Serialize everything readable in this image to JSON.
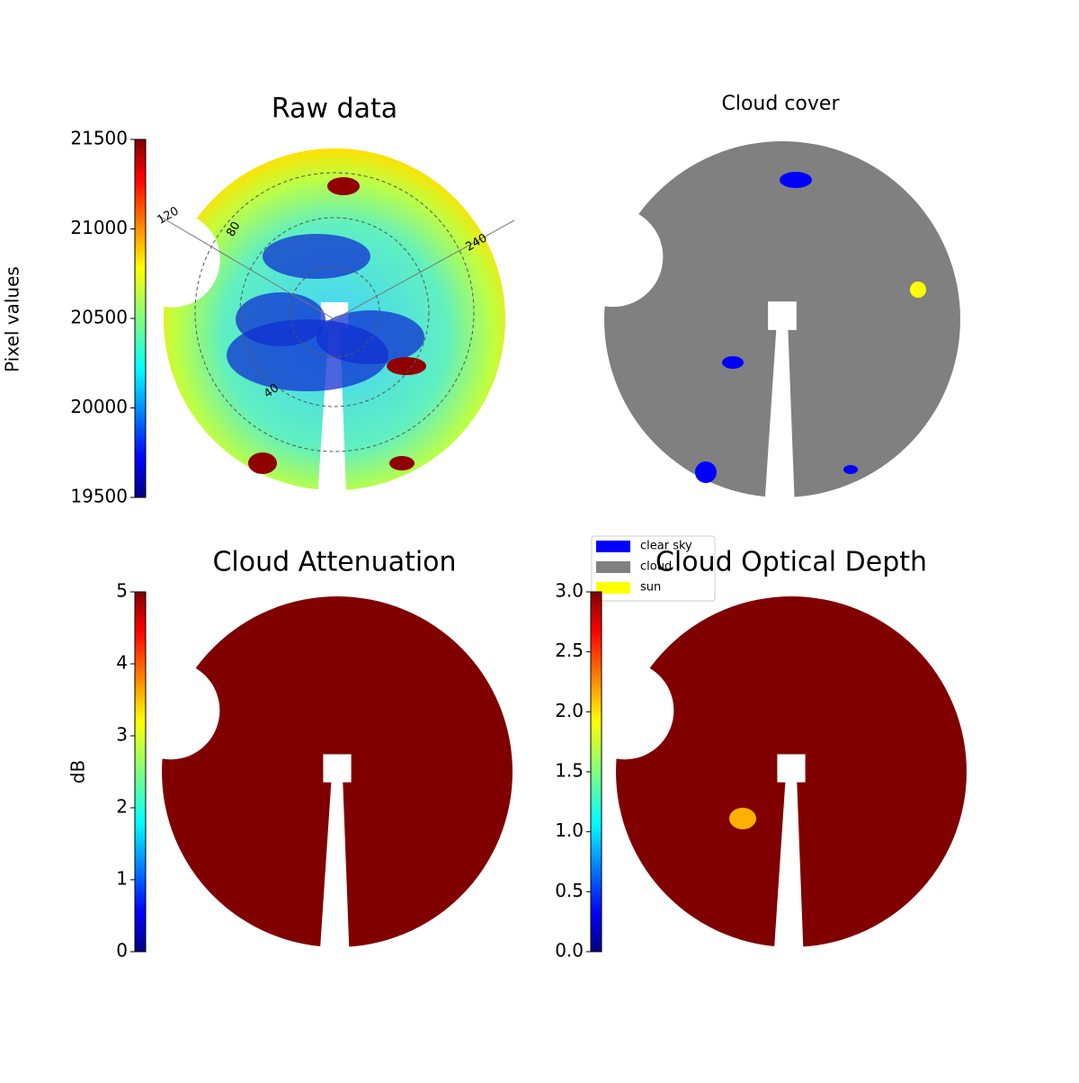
{
  "chart_data": [
    {
      "type": "image",
      "title": "Raw data",
      "colorbar_label": "Pixel values",
      "clim": [
        19500,
        21500
      ],
      "cticks": [
        19500,
        20000,
        20500,
        21000,
        21500
      ],
      "colormap": "jet",
      "annotations": [
        "120",
        "240",
        "80",
        "40"
      ]
    },
    {
      "type": "image",
      "title": "Cloud cover",
      "legend_items": [
        {
          "name": "clear sky",
          "color": "#0000ff"
        },
        {
          "name": "cloud",
          "color": "#808080"
        },
        {
          "name": "sun",
          "color": "#ffff00"
        }
      ]
    },
    {
      "type": "image",
      "title": "Cloud Attenuation",
      "colorbar_label": "dB",
      "clim": [
        0,
        5
      ],
      "cticks": [
        0,
        1,
        2,
        3,
        4,
        5
      ],
      "colormap": "jet"
    },
    {
      "type": "image",
      "title": "Cloud Optical Depth",
      "clim": [
        0,
        3
      ],
      "cticks": [
        {
          "value": 0,
          "label": "0.0"
        },
        0.5,
        {
          "value": 1,
          "label": "1.0"
        },
        1.5,
        {
          "value": 2,
          "label": "2.0"
        },
        2.5,
        {
          "value": 3,
          "label": "3.0"
        }
      ],
      "colormap": "jet"
    }
  ]
}
